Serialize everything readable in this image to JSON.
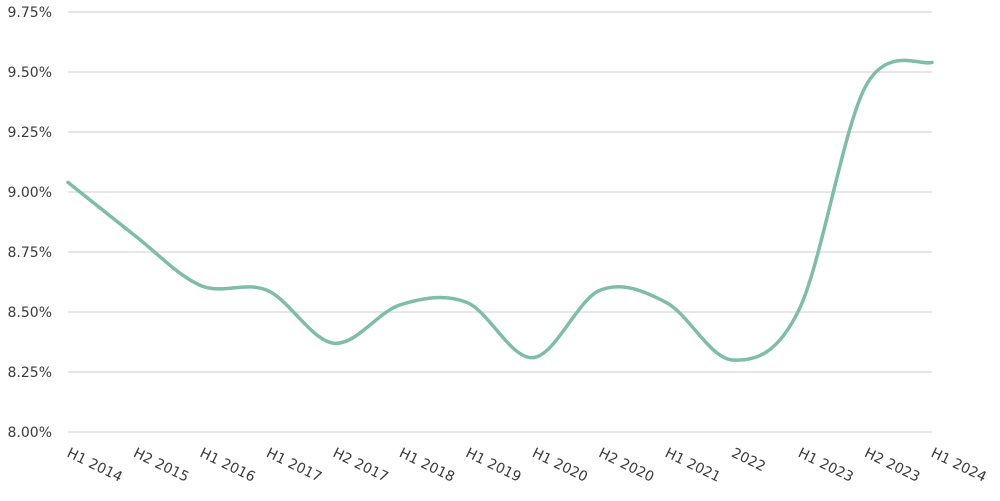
{
  "chart_data": {
    "type": "line",
    "title": "",
    "xlabel": "",
    "ylabel": "",
    "categories": [
      "H1 2014",
      "H2 2015",
      "H1 2016",
      "H1 2017",
      "H2 2017",
      "H1 2018",
      "H1 2019",
      "H1 2020",
      "H2 2020",
      "H1 2021",
      "2022",
      "H1 2023",
      "H2 2023",
      "H1 2024"
    ],
    "series": [
      {
        "values": [
          9.04,
          8.82,
          8.61,
          8.59,
          8.37,
          8.53,
          8.54,
          8.31,
          8.59,
          8.54,
          8.3,
          8.51,
          9.44,
          9.54
        ],
        "color": "#7fbcaa"
      }
    ],
    "y_ticks": [
      "8.00%",
      "8.25%",
      "8.50%",
      "8.75%",
      "9.00%",
      "9.25%",
      "9.50%",
      "9.75%"
    ],
    "y_tick_values": [
      8.0,
      8.25,
      8.5,
      8.75,
      9.0,
      9.25,
      9.5,
      9.75
    ],
    "ylim": [
      8.0,
      9.75
    ],
    "grid": "horizontal",
    "legend": "none",
    "colors": {
      "grid": "#cfcfcf",
      "text": "#3a3a3a",
      "line": "#7fbcaa"
    }
  }
}
